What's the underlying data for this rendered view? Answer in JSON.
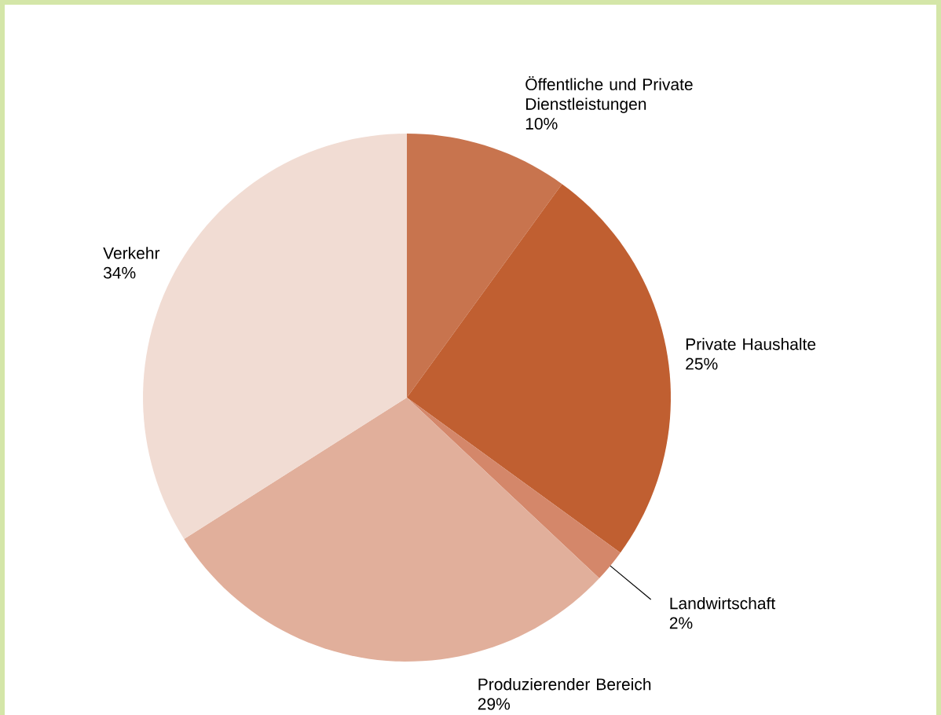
{
  "chart_data": {
    "type": "pie",
    "categories": [
      "Öffentliche und Private Dienstleistungen",
      "Private Haushalte",
      "Landwirtschaft",
      "Produzierender Bereich",
      "Verkehr"
    ],
    "values": [
      10,
      25,
      2,
      29,
      34
    ],
    "value_labels": [
      "10%",
      "25%",
      "2%",
      "29%",
      "34%"
    ],
    "colors": [
      "#c8744e",
      "#c05f31",
      "#d4876a",
      "#e1af9b",
      "#f1dcd3"
    ]
  }
}
